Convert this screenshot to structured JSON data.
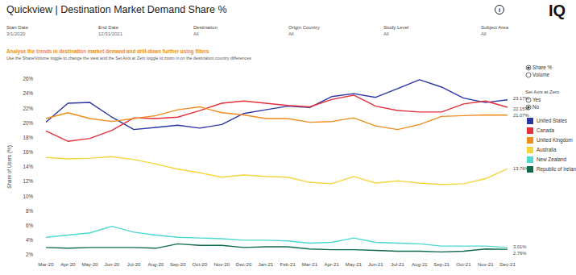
{
  "page": {
    "info": "i",
    "logo": "IQ",
    "hint": "Use the Share/Volume toggle to change the view and the Set Axis at Zero toggle to zoom in on the destination country differences",
    "filters": [
      {
        "label": "Start Date",
        "value": "3/1/2020"
      },
      {
        "label": "End Date",
        "value": "12/31/2021"
      },
      {
        "label": "Destination",
        "value": "All"
      },
      {
        "label": "Origin Country",
        "value": "All"
      },
      {
        "label": "Study Level",
        "value": "All"
      },
      {
        "label": "Subject Area",
        "value": "All"
      }
    ],
    "view_toggle": {
      "options": [
        "Share %",
        "Volume"
      ],
      "selected": "Share %"
    },
    "axis_toggle": {
      "title": "Set Axis at Zero",
      "options": [
        "Yes",
        "No"
      ],
      "selected": "No"
    }
  },
  "chart_data": {
    "type": "line",
    "title": "Quickview | Destination Market Demand Share %",
    "subtitle": "Analyse the trends in destination market demand and drill-down further using filters",
    "y_label": "Share of Users (%)",
    "categories": [
      "Mar-20",
      "Apr-20",
      "May-20",
      "Jun-20",
      "Jul-20",
      "Aug-20",
      "Sep-20",
      "Oct-20",
      "Nov-20",
      "Dec-20",
      "Jan-21",
      "Feb-21",
      "Mar-21",
      "Apr-21",
      "May-21",
      "Jun-21",
      "Jul-21",
      "Aug-21",
      "Sep-21",
      "Oct-21",
      "Nov-21",
      "Dec-21"
    ],
    "ylim": [
      2,
      26
    ],
    "yticks": [
      {
        "value": 2,
        "label": "2%"
      },
      {
        "value": 4,
        "label": "4%"
      },
      {
        "value": 6,
        "label": "6%"
      },
      {
        "value": 8,
        "label": "8%"
      },
      {
        "value": 10,
        "label": "10%"
      },
      {
        "value": 12,
        "label": "12%"
      },
      {
        "value": 14,
        "label": "14%"
      },
      {
        "value": 16,
        "label": "16%"
      },
      {
        "value": 18,
        "label": "18%"
      },
      {
        "value": 20,
        "label": "20%"
      },
      {
        "value": 22,
        "label": "22%"
      },
      {
        "value": 24,
        "label": "24%"
      },
      {
        "value": 26,
        "label": "26%"
      }
    ],
    "grid": false,
    "legend": "right",
    "series": [
      {
        "name": "United States",
        "color": "#2b36a6",
        "values": [
          20.1,
          22.7,
          22.8,
          20.8,
          19.1,
          19.4,
          19.7,
          19.3,
          19.8,
          21.3,
          21.8,
          22.3,
          22.1,
          23.6,
          24.0,
          23.5,
          24.7,
          25.9,
          24.9,
          23.4,
          22.8,
          23.17
        ],
        "value_labels": [
          null,
          null,
          null,
          null,
          null,
          null,
          null,
          null,
          null,
          null,
          null,
          null,
          null,
          null,
          null,
          null,
          null,
          null,
          null,
          null,
          null,
          "23.17%"
        ]
      },
      {
        "name": "Canada",
        "color": "#e5303c",
        "values": [
          18.9,
          17.5,
          17.9,
          19.0,
          20.7,
          20.6,
          20.8,
          21.7,
          22.7,
          23.0,
          22.7,
          22.4,
          22.2,
          23.2,
          23.8,
          22.3,
          21.7,
          21.5,
          21.5,
          22.6,
          23.0,
          22.15
        ],
        "value_labels": [
          null,
          null,
          null,
          null,
          null,
          null,
          null,
          null,
          null,
          null,
          null,
          null,
          null,
          null,
          null,
          null,
          null,
          null,
          null,
          null,
          null,
          "22.15%"
        ]
      },
      {
        "name": "United Kingdom",
        "color": "#f08b1f",
        "values": [
          20.6,
          21.4,
          20.6,
          20.2,
          20.6,
          21.0,
          21.8,
          22.2,
          21.4,
          21.1,
          20.6,
          20.6,
          20.1,
          20.2,
          20.7,
          19.6,
          19.1,
          19.8,
          20.9,
          21.0,
          21.1,
          21.07
        ],
        "value_labels": [
          null,
          null,
          null,
          null,
          null,
          null,
          null,
          null,
          null,
          null,
          null,
          null,
          null,
          null,
          null,
          null,
          null,
          null,
          null,
          null,
          null,
          "21.07%"
        ]
      },
      {
        "name": "Australia",
        "color": "#f5d53c",
        "values": [
          15.3,
          15.1,
          15.2,
          15.4,
          15.0,
          14.4,
          13.7,
          13.2,
          12.6,
          12.9,
          12.7,
          12.6,
          11.9,
          11.7,
          12.7,
          11.8,
          12.1,
          11.8,
          11.6,
          11.7,
          12.4,
          13.76
        ],
        "value_labels": [
          null,
          null,
          null,
          null,
          null,
          null,
          null,
          null,
          null,
          null,
          null,
          null,
          null,
          null,
          null,
          null,
          null,
          null,
          null,
          null,
          null,
          "13.76%"
        ]
      },
      {
        "name": "New Zealand",
        "color": "#4fd8d0",
        "values": [
          4.4,
          4.7,
          5.0,
          5.9,
          5.1,
          4.7,
          4.4,
          4.3,
          4.2,
          4.0,
          4.0,
          3.9,
          3.6,
          3.7,
          4.3,
          3.7,
          3.6,
          3.5,
          3.2,
          3.2,
          3.2,
          3.01
        ],
        "value_labels": [
          null,
          null,
          null,
          null,
          null,
          null,
          null,
          null,
          null,
          null,
          null,
          null,
          null,
          null,
          null,
          null,
          null,
          null,
          null,
          null,
          null,
          "3.01%"
        ]
      },
      {
        "name": "Republic of Ireland",
        "color": "#106b4d",
        "values": [
          3.0,
          2.9,
          3.0,
          3.0,
          3.0,
          2.9,
          3.5,
          3.3,
          3.3,
          3.0,
          3.1,
          3.1,
          2.8,
          2.7,
          2.7,
          2.6,
          2.5,
          2.5,
          2.4,
          2.5,
          2.8,
          2.76
        ],
        "value_labels": [
          null,
          null,
          null,
          null,
          null,
          null,
          null,
          null,
          null,
          null,
          null,
          null,
          null,
          null,
          null,
          null,
          null,
          null,
          null,
          null,
          null,
          "2.76%"
        ]
      }
    ]
  }
}
